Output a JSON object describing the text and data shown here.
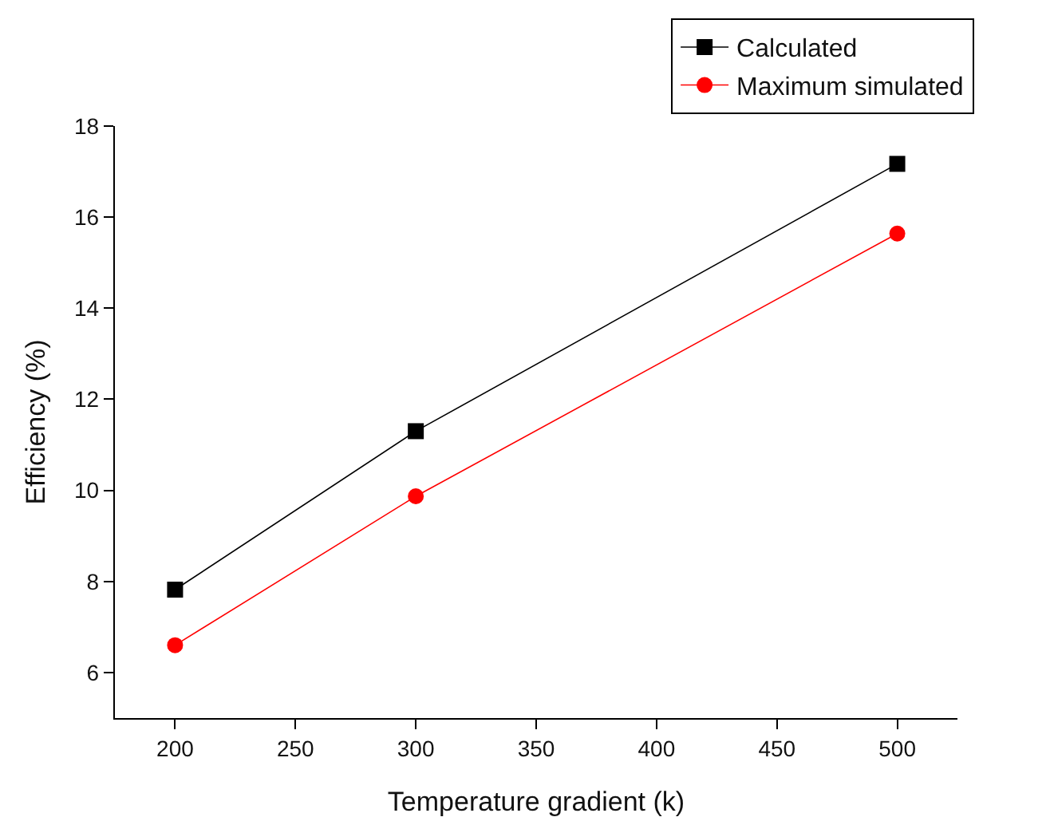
{
  "chart_data": {
    "type": "line",
    "xlabel": "Temperature gradient (k)",
    "ylabel": "Efficiency (%)",
    "x": [
      200,
      300,
      500
    ],
    "series": [
      {
        "name": "Calculated",
        "color": "#000000",
        "marker": "square",
        "values": [
          7.82,
          11.3,
          17.17
        ]
      },
      {
        "name": "Maximum simulated",
        "color": "#ff0000",
        "marker": "circle",
        "values": [
          6.6,
          9.87,
          15.64
        ]
      }
    ],
    "xlim": [
      175,
      525
    ],
    "xticks": [
      200,
      250,
      300,
      350,
      400,
      450,
      500
    ],
    "ylim": [
      5,
      18
    ],
    "yticks": [
      6,
      8,
      10,
      12,
      14,
      16,
      18
    ],
    "grid": false,
    "legend": "top right",
    "line_style": "solid"
  }
}
